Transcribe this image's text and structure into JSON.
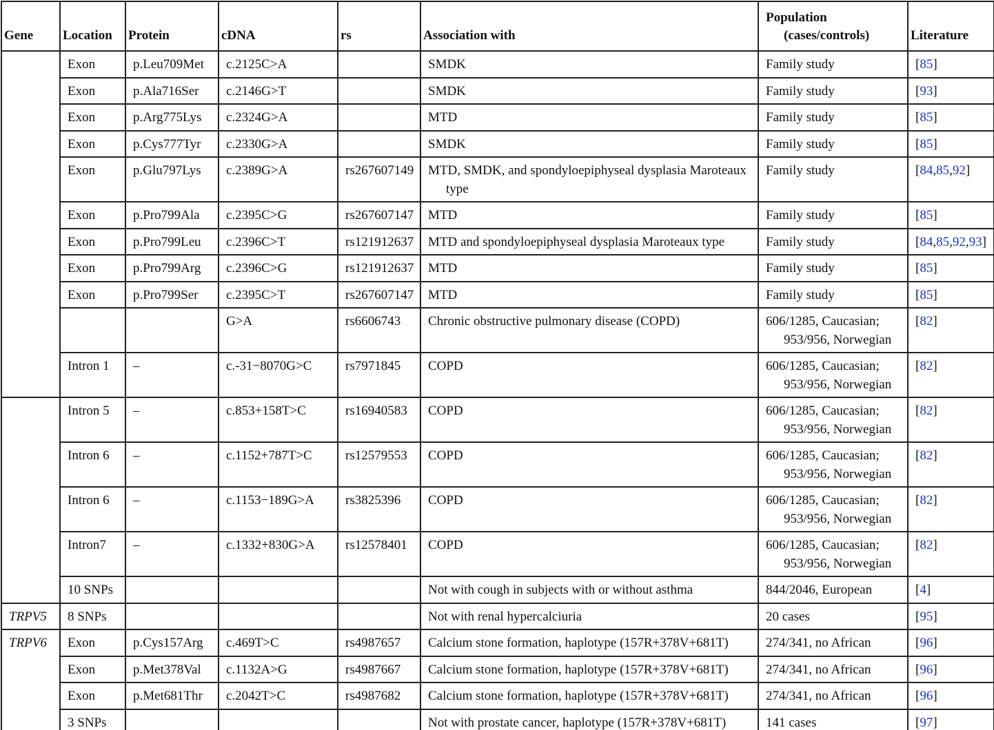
{
  "table": {
    "headers": [
      "Gene",
      "Location",
      "Protein",
      "cDNA",
      "rs",
      "Association with",
      "Population (cases/controls)",
      "Literature"
    ],
    "groups": [
      {
        "rows": [
          [
            "Exon",
            "p.Leu709Met",
            "c.2125C>A",
            null,
            "SMDK",
            "Family study",
            "[85]"
          ],
          [
            "Exon",
            "p.Ala716Ser",
            "c.2146G>T",
            null,
            "SMDK",
            "Family study",
            "[93]"
          ],
          [
            "Exon",
            "p.Arg775Lys",
            "c.2324G>A",
            null,
            "MTD",
            "Family study",
            "[85]"
          ],
          [
            "Exon",
            "p.Cys777Tyr",
            "c.2330G>A",
            null,
            "SMDK",
            "Family study",
            "[85]"
          ],
          [
            "Exon",
            "p.Glu797Lys",
            "c.2389G>A",
            "rs267607149",
            "MTD, SMDK, and spondyloepiphyseal dysplasia Maroteaux type",
            "Family study",
            "[84,85,92]"
          ],
          [
            "Exon",
            "p.Pro799Ala",
            "c.2395C>G",
            "rs267607147",
            "MTD",
            "Family study",
            "[85]"
          ],
          [
            "Exon",
            "p.Pro799Leu",
            "c.2396C>T",
            "rs121912637",
            "MTD and spondyloepiphyseal dysplasia Maroteaux type",
            "Family study",
            "[84,85,92,93]"
          ],
          [
            "Exon",
            "p.Pro799Arg",
            "c.2396C>G",
            "rs121912637",
            "MTD",
            "Family study",
            "[85]"
          ],
          [
            "Exon",
            "p.Pro799Ser",
            "c.2395C>T",
            "rs267607147",
            "MTD",
            "Family study",
            "[85]"
          ],
          [
            null,
            null,
            "G>A",
            "rs6606743",
            "Chronic obstructive pulmonary disease (COPD)",
            "606/1285, Caucasian; 953/956, Norwegian",
            "[82]"
          ],
          [
            "Intron 1",
            "–",
            "c.-31−8070G>C",
            "rs7971845",
            "COPD",
            "606/1285, Caucasian; 953/956, Norwegian",
            "[82]"
          ]
        ]
      },
      {
        "rows": [
          [
            "Intron 5",
            "–",
            "c.853+158T>C",
            "rs16940583",
            "COPD",
            "606/1285, Caucasian; 953/956, Norwegian",
            "[82]"
          ],
          [
            "Intron 6",
            "–",
            "c.1152+787T>C",
            "rs12579553",
            "COPD",
            "606/1285, Caucasian; 953/956, Norwegian",
            "[82]"
          ],
          [
            "Intron 6",
            "–",
            "c.1153−189G>A",
            "rs3825396",
            "COPD",
            "606/1285, Caucasian; 953/956, Norwegian",
            "[82]"
          ],
          [
            "Intron7",
            "–",
            "c.1332+830G>A",
            "rs12578401",
            "COPD",
            "606/1285, Caucasian; 953/956, Norwegian",
            "[82]"
          ],
          [
            "10 SNPs",
            null,
            null,
            null,
            "Not with cough in subjects with or without asthma",
            "844/2046, European",
            "[4]"
          ]
        ]
      },
      {
        "gene": "TRPV5",
        "rows": [
          [
            "8 SNPs",
            null,
            null,
            null,
            "Not with renal hypercalciuria",
            "20 cases",
            "[95]"
          ]
        ]
      },
      {
        "gene": "TRPV6",
        "rows": [
          [
            "Exon",
            "p.Cys157Arg",
            "c.469T>C",
            "rs4987657",
            "Calcium stone formation, haplotype (157R+378V+681T)",
            "274/341, no African",
            "[96]"
          ],
          [
            "Exon",
            "p.Met378Val",
            "c.1132A>G",
            "rs4987667",
            "Calcium stone formation, haplotype (157R+378V+681T)",
            "274/341, no African",
            "[96]"
          ],
          [
            "Exon",
            "p.Met681Thr",
            "c.2042T>C",
            "rs4987682",
            "Calcium stone formation, haplotype (157R+378V+681T)",
            "274/341, no African",
            "[96]"
          ],
          [
            "3 SNPs",
            null,
            null,
            null,
            "Not with prostate cancer, haplotype (157R+378V+681T)",
            "141 cases",
            "[97]"
          ]
        ]
      }
    ]
  }
}
